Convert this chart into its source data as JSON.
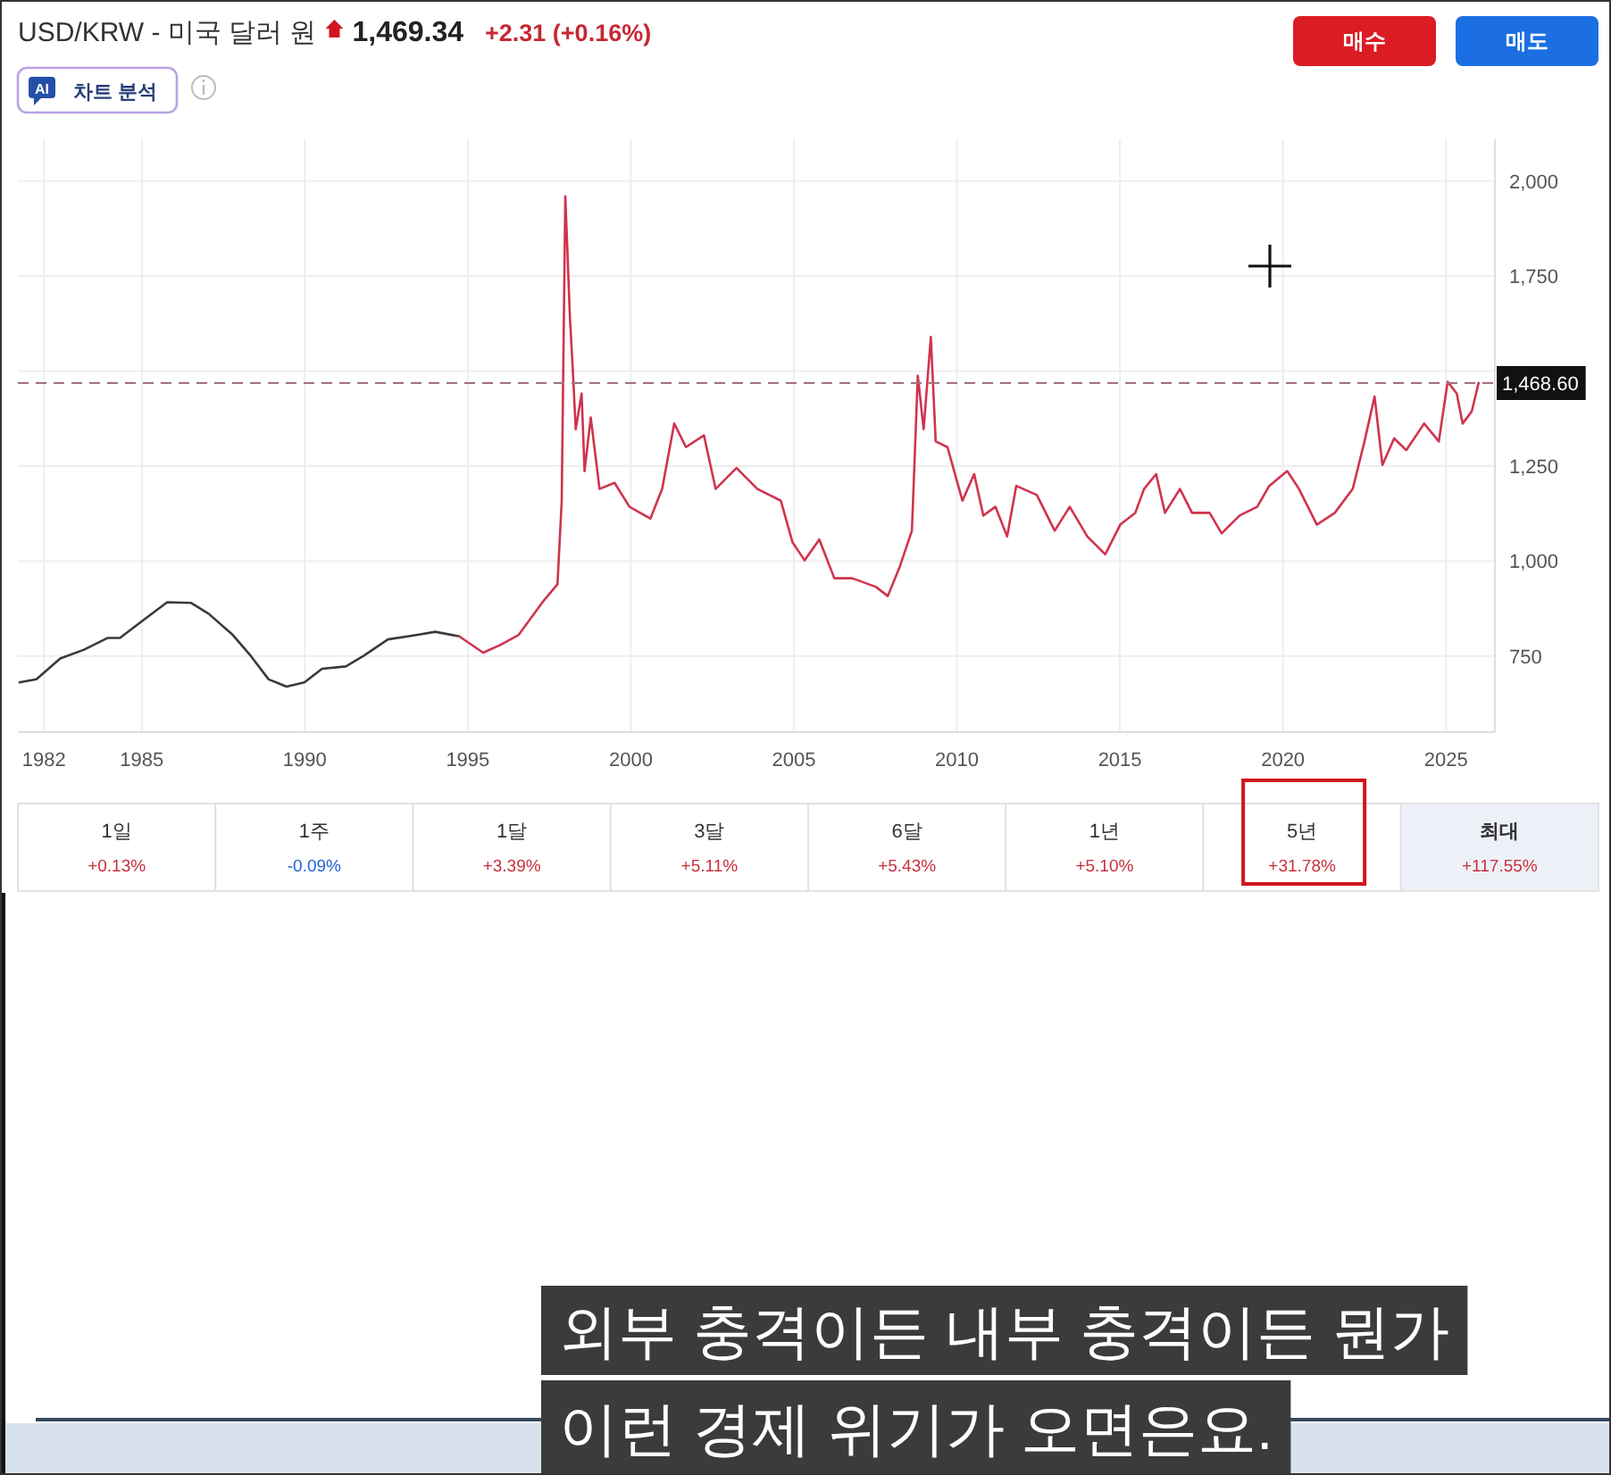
{
  "chart_data": {
    "type": "line",
    "title": "USD/KRW - 미국 달러 원",
    "subtitle": "1,469.34",
    "annotations": [
      "+2.31 (+0.16%)",
      "매수",
      "매도",
      "AI",
      "차트 분석",
      "1일",
      "+0.13%",
      "1주",
      "-0.09%",
      "1달",
      "+3.39%",
      "3달",
      "+5.11%",
      "6달",
      "+5.43%",
      "1년",
      "+5.10%",
      "5년",
      "+31.78%",
      "최대",
      "+117.55%",
      "외부 충격이든 내부 충격이든 뭔가",
      "이런 경제 위기가 오면은요."
    ],
    "xlim": [
      1981.2,
      2026.5
    ],
    "ylim": [
      550,
      2110
    ],
    "xticks": [
      1982,
      1985,
      1990,
      1995,
      2000,
      2005,
      2010,
      2015,
      2020,
      2025
    ],
    "yticks": [
      750,
      {
        "value": 1000,
        "label": "1,000"
      },
      {
        "value": 1250,
        "label": "1,250"
      },
      {
        "value": 1500,
        "label": null
      },
      {
        "value": 1750,
        "label": "1,750"
      },
      {
        "value": 2000,
        "label": "2,000"
      }
    ],
    "grid": true,
    "ref_lines": [
      {
        "axis": "y",
        "value": 1468.6,
        "label": "1,468.60",
        "color": "#a07080",
        "line_style": "dashed"
      }
    ],
    "series": [
      {
        "color": "#3a3a3a",
        "x": [
          1981.25,
          1981.77,
          1982.5,
          1983.23,
          1983.96,
          1984.33,
          1985.05,
          1985.78,
          1986.52,
          1987.06,
          1987.79,
          1988.34,
          1988.89,
          1989.44,
          1989.99,
          1990.53,
          1991.26,
          1991.81,
          1992.55,
          1993.46,
          1994.0,
          1994.74
        ],
        "values": [
          681,
          689,
          744,
          767,
          798,
          798,
          845,
          892,
          890,
          861,
          806,
          751,
          689,
          670,
          681,
          717,
          723,
          751,
          794,
          806,
          814,
          802
        ]
      },
      {
        "color": "#d0344e",
        "x": [
          1994.74,
          1995.47,
          1996.01,
          1996.56,
          1997.29,
          1997.75,
          1997.88,
          1997.99,
          1998.13,
          1998.22,
          1998.31,
          1998.49,
          1998.58,
          1998.77,
          1999.04,
          1999.5,
          1999.96,
          2000.6,
          2000.96,
          2001.33,
          2001.69,
          2002.24,
          2002.6,
          2003.24,
          2003.88,
          2004.6,
          2004.96,
          2005.33,
          2005.78,
          2006.24,
          2006.79,
          2007.52,
          2007.88,
          2008.25,
          2008.62,
          2008.8,
          2008.98,
          2009.2,
          2009.35,
          2009.71,
          2010.17,
          2010.53,
          2010.81,
          2011.18,
          2011.54,
          2011.82,
          2012.45,
          2013.0,
          2013.46,
          2014.0,
          2014.55,
          2015.01,
          2015.47,
          2015.74,
          2016.11,
          2016.38,
          2016.84,
          2017.21,
          2017.75,
          2018.12,
          2018.67,
          2019.21,
          2019.58,
          2020.13,
          2020.49,
          2021.04,
          2021.59,
          2022.14,
          2022.5,
          2022.81,
          2023.05,
          2023.41,
          2023.78,
          2024.33,
          2024.78,
          2025.05,
          2025.33,
          2025.51,
          2025.79,
          2026.0
        ],
        "values": [
          802,
          759,
          780,
          806,
          892,
          939,
          1159,
          1960,
          1644,
          1503,
          1347,
          1441,
          1237,
          1378,
          1190,
          1206,
          1143,
          1112,
          1190,
          1362,
          1300,
          1331,
          1190,
          1245,
          1190,
          1159,
          1049,
          1002,
          1057,
          955,
          955,
          932,
          908,
          986,
          1080,
          1488,
          1347,
          1590,
          1315,
          1300,
          1159,
          1229,
          1120,
          1143,
          1065,
          1198,
          1174,
          1080,
          1143,
          1065,
          1018,
          1096,
          1127,
          1190,
          1229,
          1127,
          1190,
          1127,
          1127,
          1073,
          1120,
          1143,
          1198,
          1237,
          1190,
          1096,
          1127,
          1190,
          1315,
          1433,
          1253,
          1323,
          1292,
          1362,
          1315,
          1472,
          1441,
          1362,
          1394,
          1469
        ]
      }
    ]
  }
}
